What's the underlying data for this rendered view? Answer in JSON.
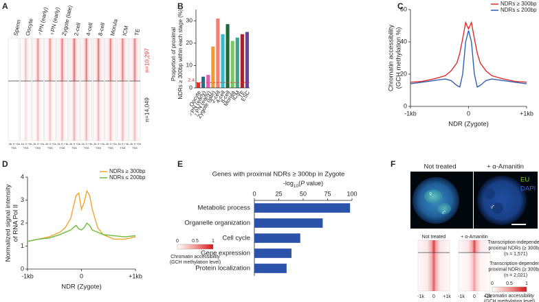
{
  "panel_labels": [
    "A",
    "B",
    "C",
    "D",
    "E",
    "F"
  ],
  "heatmap_a": {
    "columns": [
      "Sperm",
      "Oocyte",
      "♂PN (early)",
      "♀PN (early)",
      "Zygote (late)",
      "2-cell",
      "4-cell",
      "8-cell",
      "Morula",
      "ICM",
      "TE"
    ],
    "row_groups": [
      "n=10,297",
      "n=14,049"
    ],
    "tick_labels": [
      "-1k",
      "0",
      "+1k"
    ],
    "tss_label": "TSS",
    "colorbar": {
      "ticks": [
        0,
        0.5,
        1
      ],
      "label": [
        "Chromatin accessibility",
        "(GCH methylation level)"
      ]
    }
  },
  "chart_data": [
    {
      "type": "bar",
      "y_label": [
        "Proportion of proximal",
        "NDRs ≥ 300bp within each stage (%)"
      ],
      "categories": [
        "Oocyte",
        "♂PN (early)",
        "♀PN (early)",
        "Zygote (late)",
        "2-cell",
        "4-cell",
        "8-cell",
        "Morula",
        "ICM",
        "TE",
        "ESC"
      ],
      "values": [
        2.4,
        5,
        5.8,
        18.5,
        31,
        24,
        28.5,
        21,
        22.5,
        24,
        25
      ],
      "colors": [
        "#d9322f",
        "#1f6f8b",
        "#e05fb5",
        "#f39a2b",
        "#f07f74",
        "#37b9d0",
        "#1b6b3a",
        "#7dc462",
        "#3aa58a",
        "#a3242a",
        "#6c3fa0"
      ],
      "ylim": [
        0,
        35
      ],
      "yticks": [
        0,
        10,
        20,
        30
      ],
      "reference_line": 2.4
    },
    {
      "type": "line",
      "y_label": [
        "Chromatin accessibility",
        "(GCH methylation %)"
      ],
      "x_label": "NDR (Zygote)",
      "x": [
        -1000,
        -800,
        -600,
        -400,
        -300,
        -200,
        -150,
        -100,
        -50,
        0,
        50,
        100,
        150,
        200,
        300,
        400,
        600,
        800,
        1000
      ],
      "series": [
        {
          "name": "NDRs ≥ 300bp",
          "color": "#e02b2b",
          "values": [
            15,
            15.5,
            17,
            19,
            22,
            27,
            33,
            42,
            52,
            48,
            52,
            42,
            33,
            27,
            22,
            19,
            17,
            15.5,
            15
          ]
        },
        {
          "name": "NDRs ≤ 200bp",
          "color": "#2f5fb3",
          "values": [
            14,
            15,
            16,
            17,
            16,
            13,
            12,
            20,
            40,
            47,
            40,
            20,
            12,
            13,
            16,
            17,
            16,
            15,
            14
          ]
        }
      ],
      "xlim": [
        -1000,
        1000
      ],
      "xticks": [
        {
          "value": -1000,
          "label": "-1kb"
        },
        0,
        {
          "value": 1000,
          "label": "+1kb"
        }
      ],
      "ylim": [
        0,
        60
      ],
      "yticks": [
        0,
        20,
        40,
        60
      ],
      "legend": "upper right"
    },
    {
      "type": "line",
      "y_label": [
        "Normalized signal intensity",
        "of RNA Pol II"
      ],
      "x_label": "NDR (Zygote)",
      "x": [
        -1000,
        -800,
        -600,
        -400,
        -300,
        -200,
        -150,
        -100,
        -50,
        0,
        50,
        100,
        150,
        200,
        300,
        400,
        600,
        800,
        1000
      ],
      "series": [
        {
          "name": "NDRs ≥ 300bp",
          "color": "#f2a52c",
          "values": [
            1.2,
            1.3,
            1.4,
            1.6,
            1.8,
            2.2,
            2.7,
            3.2,
            3.3,
            2.6,
            2.9,
            3.4,
            3.2,
            2.6,
            1.8,
            1.5,
            1.3,
            1.3,
            1.4
          ]
        },
        {
          "name": "NDRs ≤ 200bp",
          "color": "#6dbb3c",
          "values": [
            1.2,
            1.3,
            1.35,
            1.5,
            1.6,
            1.7,
            1.8,
            1.9,
            1.75,
            1.7,
            1.8,
            2.0,
            1.9,
            1.7,
            1.6,
            1.5,
            1.45,
            1.4,
            1.45
          ]
        }
      ],
      "xlim": [
        -1000,
        1000
      ],
      "xticks": [
        {
          "value": -1000,
          "label": "-1kb"
        },
        0,
        {
          "value": 1000,
          "label": "+1kb"
        }
      ],
      "ylim": [
        0,
        4
      ],
      "yticks": [
        0,
        1,
        2,
        3,
        4
      ],
      "legend": "upper right"
    },
    {
      "type": "barh",
      "title": "Genes with proximal NDRs ≥ 300bp in Zygote",
      "x_label_parts": [
        "-log",
        "10",
        "(",
        "P",
        " value)"
      ],
      "categories": [
        "Metabolic process",
        "Organelle organization",
        "Cell cycle",
        "Gene expression",
        "Protein localization"
      ],
      "values": [
        98,
        70,
        47,
        38,
        33
      ],
      "color": "#2a52a8",
      "xlim": [
        0,
        100
      ],
      "xticks": [
        0,
        25,
        50,
        75,
        100
      ]
    }
  ],
  "panel_f": {
    "image_titles": [
      "Not treated",
      "+ α-Amanitin"
    ],
    "channels": [
      "EU",
      "DAPI"
    ],
    "female": "♀",
    "male": "♂",
    "heatmap_titles": [
      "Not treated",
      "+ α-Amanitin"
    ],
    "groups": [
      [
        "Transcription-independent",
        "proximal NDRs (≥ 300bp)",
        "(n = 1,571)"
      ],
      [
        "Transcription-dependent",
        "proximal NDRs (≥ 300bp)",
        "(n = 2,021)"
      ]
    ],
    "tick_labels": [
      "-1k",
      "0",
      "+1k"
    ],
    "colorbar": {
      "ticks": [
        0,
        0.5,
        1
      ],
      "label": [
        "Chromatin accessibility",
        "(GCH methylation level)"
      ]
    }
  }
}
